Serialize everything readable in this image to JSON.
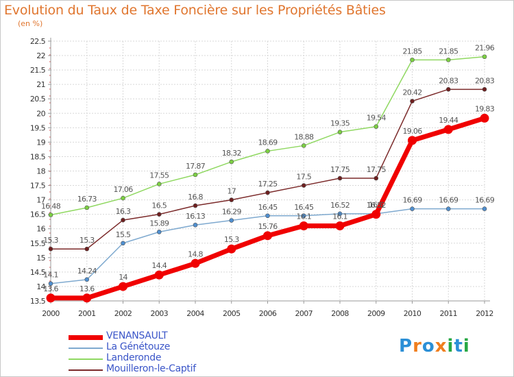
{
  "title": "Evolution du Taux de Taxe Foncière sur les Propriétés Bâties",
  "subtitle": "(en %)",
  "logo": {
    "text": "Proxiti",
    "letters": [
      {
        "ch": "P",
        "color": "#2b8fd6"
      },
      {
        "ch": "r",
        "color": "#f07e1e"
      },
      {
        "ch": "o",
        "color": "#2b8fd6"
      },
      {
        "ch": "x",
        "color": "#f07e1e"
      },
      {
        "ch": "i",
        "color": "#27a844"
      },
      {
        "ch": "t",
        "color": "#2b8fd6"
      },
      {
        "ch": "i",
        "color": "#27a844"
      }
    ]
  },
  "chart_data": {
    "type": "line",
    "x": [
      "2000",
      "2001",
      "2002",
      "2003",
      "2004",
      "2005",
      "2006",
      "2007",
      "2008",
      "2009",
      "2010",
      "2011",
      "2012"
    ],
    "ylim": [
      13.5,
      22.5
    ],
    "yticks": [
      "13.5",
      "14",
      "14.5",
      "15",
      "15.5",
      "16",
      "16.5",
      "17",
      "17.5",
      "18",
      "18.5",
      "19",
      "19.5",
      "20",
      "20.5",
      "21",
      "21.5",
      "22",
      "22.5"
    ],
    "grid": true,
    "legend_position": "bottom-left",
    "series": [
      {
        "name": "Landeronde",
        "color": "#8fd860",
        "marker": "#7ccf43",
        "width": 1.5,
        "values": [
          16.48,
          16.73,
          17.06,
          17.55,
          17.87,
          18.32,
          18.69,
          18.88,
          19.35,
          19.54,
          21.85,
          21.85,
          21.96
        ],
        "labels": [
          "16.48",
          "16.73",
          "17.06",
          "17.55",
          "17.87",
          "18.32",
          "18.69",
          "18.88",
          "19.35",
          "19.54",
          "21.85",
          "21.85",
          "21.96"
        ]
      },
      {
        "name": "Mouilleron-le-Captif",
        "color": "#7b2a2a",
        "marker": "#6e1f1f",
        "width": 1.5,
        "values": [
          15.3,
          15.3,
          16.3,
          16.5,
          16.8,
          17,
          17.25,
          17.5,
          17.75,
          17.75,
          20.42,
          20.83,
          20.83
        ],
        "labels": [
          "15.3",
          "15.3",
          "16.3",
          "16.5",
          "16.8",
          "17",
          "17.25",
          "17.5",
          "17.75",
          "17.75",
          "20.42",
          "20.83",
          "20.83"
        ]
      },
      {
        "name": "La Génétouze",
        "color": "#7ea9cf",
        "marker": "#4f8fd0",
        "width": 1.5,
        "values": [
          14.1,
          14.24,
          15.5,
          15.89,
          16.13,
          16.29,
          16.45,
          16.45,
          16.52,
          16.52,
          16.69,
          16.69,
          16.69
        ],
        "labels": [
          "14.1",
          "14.24",
          "15.5",
          "15.89",
          "16.13",
          "16.29",
          "16.45",
          "16.45",
          "16.52",
          "16.52",
          "16.69",
          "16.69",
          "16.69"
        ]
      },
      {
        "name": "VENANSAULT",
        "color": "#f00000",
        "marker": "#f00000",
        "width": 7,
        "values": [
          13.6,
          13.6,
          14,
          14.4,
          14.8,
          15.3,
          15.76,
          16.1,
          16.1,
          16.5,
          19.06,
          19.44,
          19.83
        ],
        "labels": [
          "13.6",
          "13.6",
          "14",
          "14.4",
          "14.8",
          "15.3",
          "15.76",
          "16.1",
          "16.1",
          "16.5",
          "19.06",
          "19.44",
          "19.83"
        ]
      }
    ],
    "legend_order": [
      "VENANSAULT",
      "La Génétouze",
      "Landeronde",
      "Mouilleron-le-Captif"
    ]
  }
}
